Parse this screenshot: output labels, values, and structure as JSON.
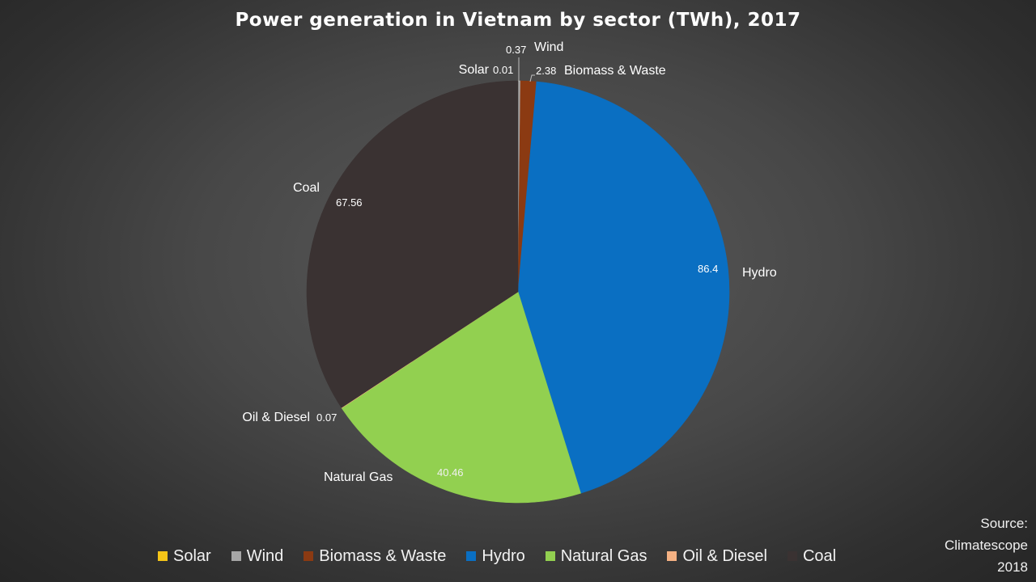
{
  "chart_data": {
    "type": "pie",
    "title": "Power generation in Vietnam by sector (TWh), 2017",
    "legend_position": "bottom",
    "categories": [
      "Solar",
      "Wind",
      "Biomass & Waste",
      "Hydro",
      "Natural Gas",
      "Oil & Diesel",
      "Coal"
    ],
    "values": [
      0.01,
      0.37,
      2.38,
      86.4,
      40.46,
      0.07,
      67.56
    ],
    "value_labels": [
      "0.01",
      "0.37",
      "2.38",
      "86.4",
      "40.46",
      "0.07",
      "67.56"
    ],
    "colors": [
      "#f5c518",
      "#a6a6a6",
      "#8b3a12",
      "#0a6fc2",
      "#92d050",
      "#f4b183",
      "#3a3232"
    ]
  },
  "source_note": {
    "line1": "Source:",
    "line2": "Climatescope",
    "line3": "2018"
  }
}
